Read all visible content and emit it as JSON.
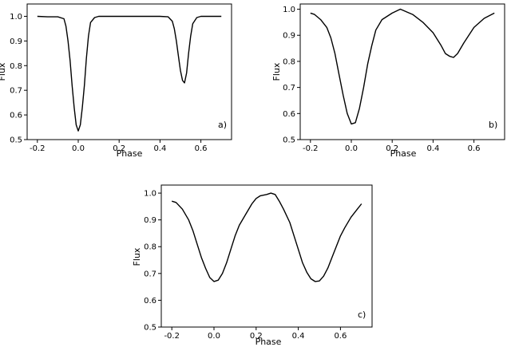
{
  "chart_data": [
    {
      "type": "line",
      "panel_tag": "a)",
      "xlabel": "Phase",
      "ylabel": "Flux",
      "xlim": [
        -0.25,
        0.75
      ],
      "ylim": [
        0.5,
        1.05
      ],
      "xticks": [
        "-0.2",
        "0.0",
        "0.2",
        "0.4",
        "0.6"
      ],
      "yticks": [
        "0.5",
        "0.6",
        "0.7",
        "0.8",
        "0.9",
        "1.0"
      ],
      "series": [
        {
          "x": [
            -0.2,
            -0.15,
            -0.1,
            -0.07,
            -0.06,
            -0.05,
            -0.04,
            -0.03,
            -0.02,
            -0.01,
            0.0,
            0.01,
            0.02,
            0.03,
            0.04,
            0.05,
            0.06,
            0.08,
            0.1,
            0.2,
            0.3,
            0.4,
            0.44,
            0.46,
            0.47,
            0.48,
            0.49,
            0.5,
            0.51,
            0.52,
            0.53,
            0.54,
            0.55,
            0.56,
            0.58,
            0.6,
            0.65,
            0.7
          ],
          "y": [
            1.0,
            0.998,
            0.998,
            0.99,
            0.96,
            0.9,
            0.82,
            0.72,
            0.63,
            0.56,
            0.535,
            0.56,
            0.63,
            0.72,
            0.83,
            0.92,
            0.975,
            0.995,
            1.0,
            1.0,
            1.0,
            1.0,
            0.998,
            0.98,
            0.95,
            0.9,
            0.84,
            0.78,
            0.74,
            0.73,
            0.77,
            0.85,
            0.92,
            0.97,
            0.995,
            1.0,
            1.0,
            1.0
          ]
        }
      ]
    },
    {
      "type": "line",
      "panel_tag": "b)",
      "xlabel": "Phase",
      "ylabel": "Flux",
      "xlim": [
        -0.25,
        0.75
      ],
      "ylim": [
        0.5,
        1.02
      ],
      "xticks": [
        "-0.2",
        "0.0",
        "0.2",
        "0.4",
        "0.6"
      ],
      "yticks": [
        "0.5",
        "0.6",
        "0.7",
        "0.8",
        "0.9",
        "1.0"
      ],
      "series": [
        {
          "x": [
            -0.2,
            -0.18,
            -0.15,
            -0.12,
            -0.1,
            -0.08,
            -0.06,
            -0.04,
            -0.02,
            0.0,
            0.02,
            0.04,
            0.06,
            0.08,
            0.1,
            0.12,
            0.15,
            0.2,
            0.24,
            0.3,
            0.35,
            0.4,
            0.44,
            0.46,
            0.48,
            0.5,
            0.52,
            0.55,
            0.6,
            0.65,
            0.7
          ],
          "y": [
            0.985,
            0.98,
            0.96,
            0.93,
            0.89,
            0.83,
            0.75,
            0.67,
            0.6,
            0.56,
            0.565,
            0.62,
            0.7,
            0.79,
            0.86,
            0.92,
            0.96,
            0.985,
            1.0,
            0.98,
            0.95,
            0.91,
            0.86,
            0.83,
            0.82,
            0.815,
            0.83,
            0.87,
            0.93,
            0.965,
            0.985
          ]
        }
      ]
    },
    {
      "type": "line",
      "panel_tag": "c)",
      "xlabel": "Phase",
      "ylabel": "Flux",
      "xlim": [
        -0.25,
        0.75
      ],
      "ylim": [
        0.5,
        1.03
      ],
      "xticks": [
        "-0.2",
        "0.0",
        "0.2",
        "0.4",
        "0.6"
      ],
      "yticks": [
        "0.5",
        "0.6",
        "0.7",
        "0.8",
        "0.9",
        "1.0"
      ],
      "series": [
        {
          "x": [
            -0.2,
            -0.18,
            -0.15,
            -0.12,
            -0.1,
            -0.08,
            -0.06,
            -0.04,
            -0.02,
            0.0,
            0.02,
            0.04,
            0.06,
            0.08,
            0.1,
            0.12,
            0.15,
            0.18,
            0.2,
            0.22,
            0.25,
            0.27,
            0.29,
            0.31,
            0.33,
            0.36,
            0.38,
            0.4,
            0.42,
            0.44,
            0.46,
            0.48,
            0.5,
            0.52,
            0.54,
            0.56,
            0.58,
            0.6,
            0.62,
            0.65,
            0.68,
            0.7
          ],
          "y": [
            0.97,
            0.965,
            0.94,
            0.9,
            0.86,
            0.81,
            0.76,
            0.72,
            0.685,
            0.67,
            0.675,
            0.7,
            0.74,
            0.79,
            0.84,
            0.88,
            0.92,
            0.96,
            0.98,
            0.99,
            0.995,
            1.0,
            0.995,
            0.97,
            0.94,
            0.89,
            0.84,
            0.79,
            0.74,
            0.705,
            0.68,
            0.67,
            0.672,
            0.69,
            0.72,
            0.76,
            0.8,
            0.84,
            0.87,
            0.91,
            0.94,
            0.96
          ]
        }
      ]
    }
  ]
}
